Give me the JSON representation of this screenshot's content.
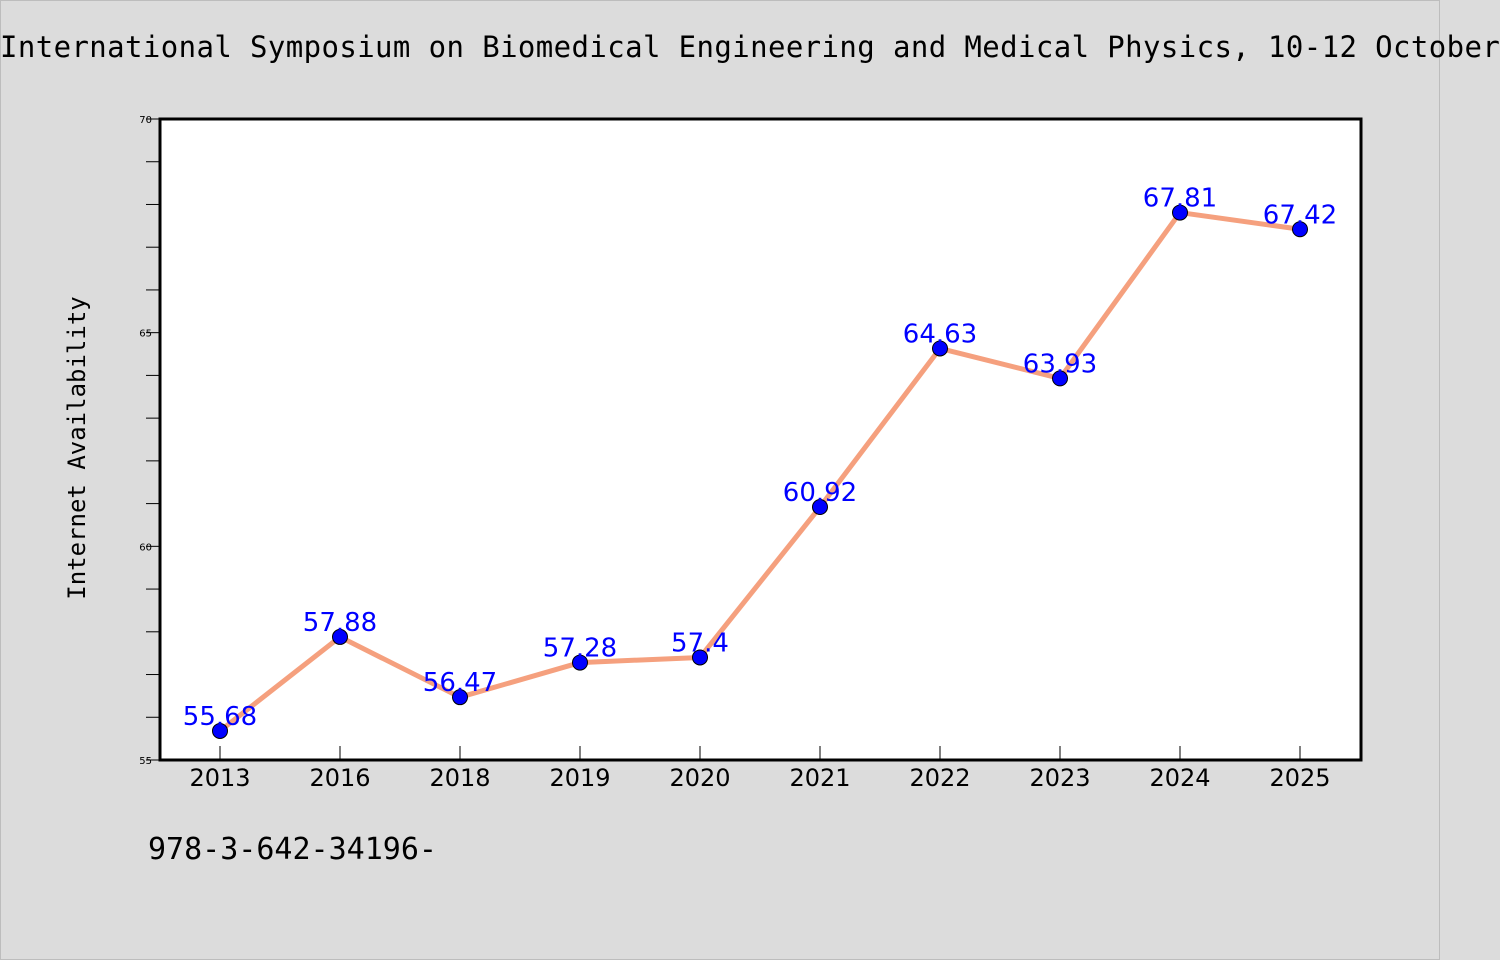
{
  "page": {
    "title": "International Symposium on Biomedical Engineering and Medical Physics, 10-12 October",
    "footer": "978-3-642-34196-"
  },
  "chart_data": {
    "type": "line",
    "categories": [
      "2013",
      "2016",
      "2018",
      "2019",
      "2020",
      "2021",
      "2022",
      "2023",
      "2024",
      "2025"
    ],
    "series": [
      {
        "values": [
          55.68,
          57.88,
          56.47,
          57.28,
          57.4,
          60.92,
          64.63,
          63.93,
          67.81,
          67.42
        ],
        "data_labels": [
          "55.68",
          "57.88",
          "56.47",
          "57.28",
          "57.4",
          "60.92",
          "64.63",
          "63.93",
          "67.81",
          "67.42"
        ],
        "line_color": "#f5a07e",
        "marker_color": "#0000ff"
      }
    ],
    "title": "International Symposium on Biomedical Engineering and Medical Physics, 10-12 October",
    "xlabel": "",
    "ylabel": "Internet Availability",
    "ylim": [
      55,
      70
    ],
    "yticks": [
      "55",
      "60",
      "65",
      "70"
    ],
    "grid": false,
    "legend": "none"
  }
}
